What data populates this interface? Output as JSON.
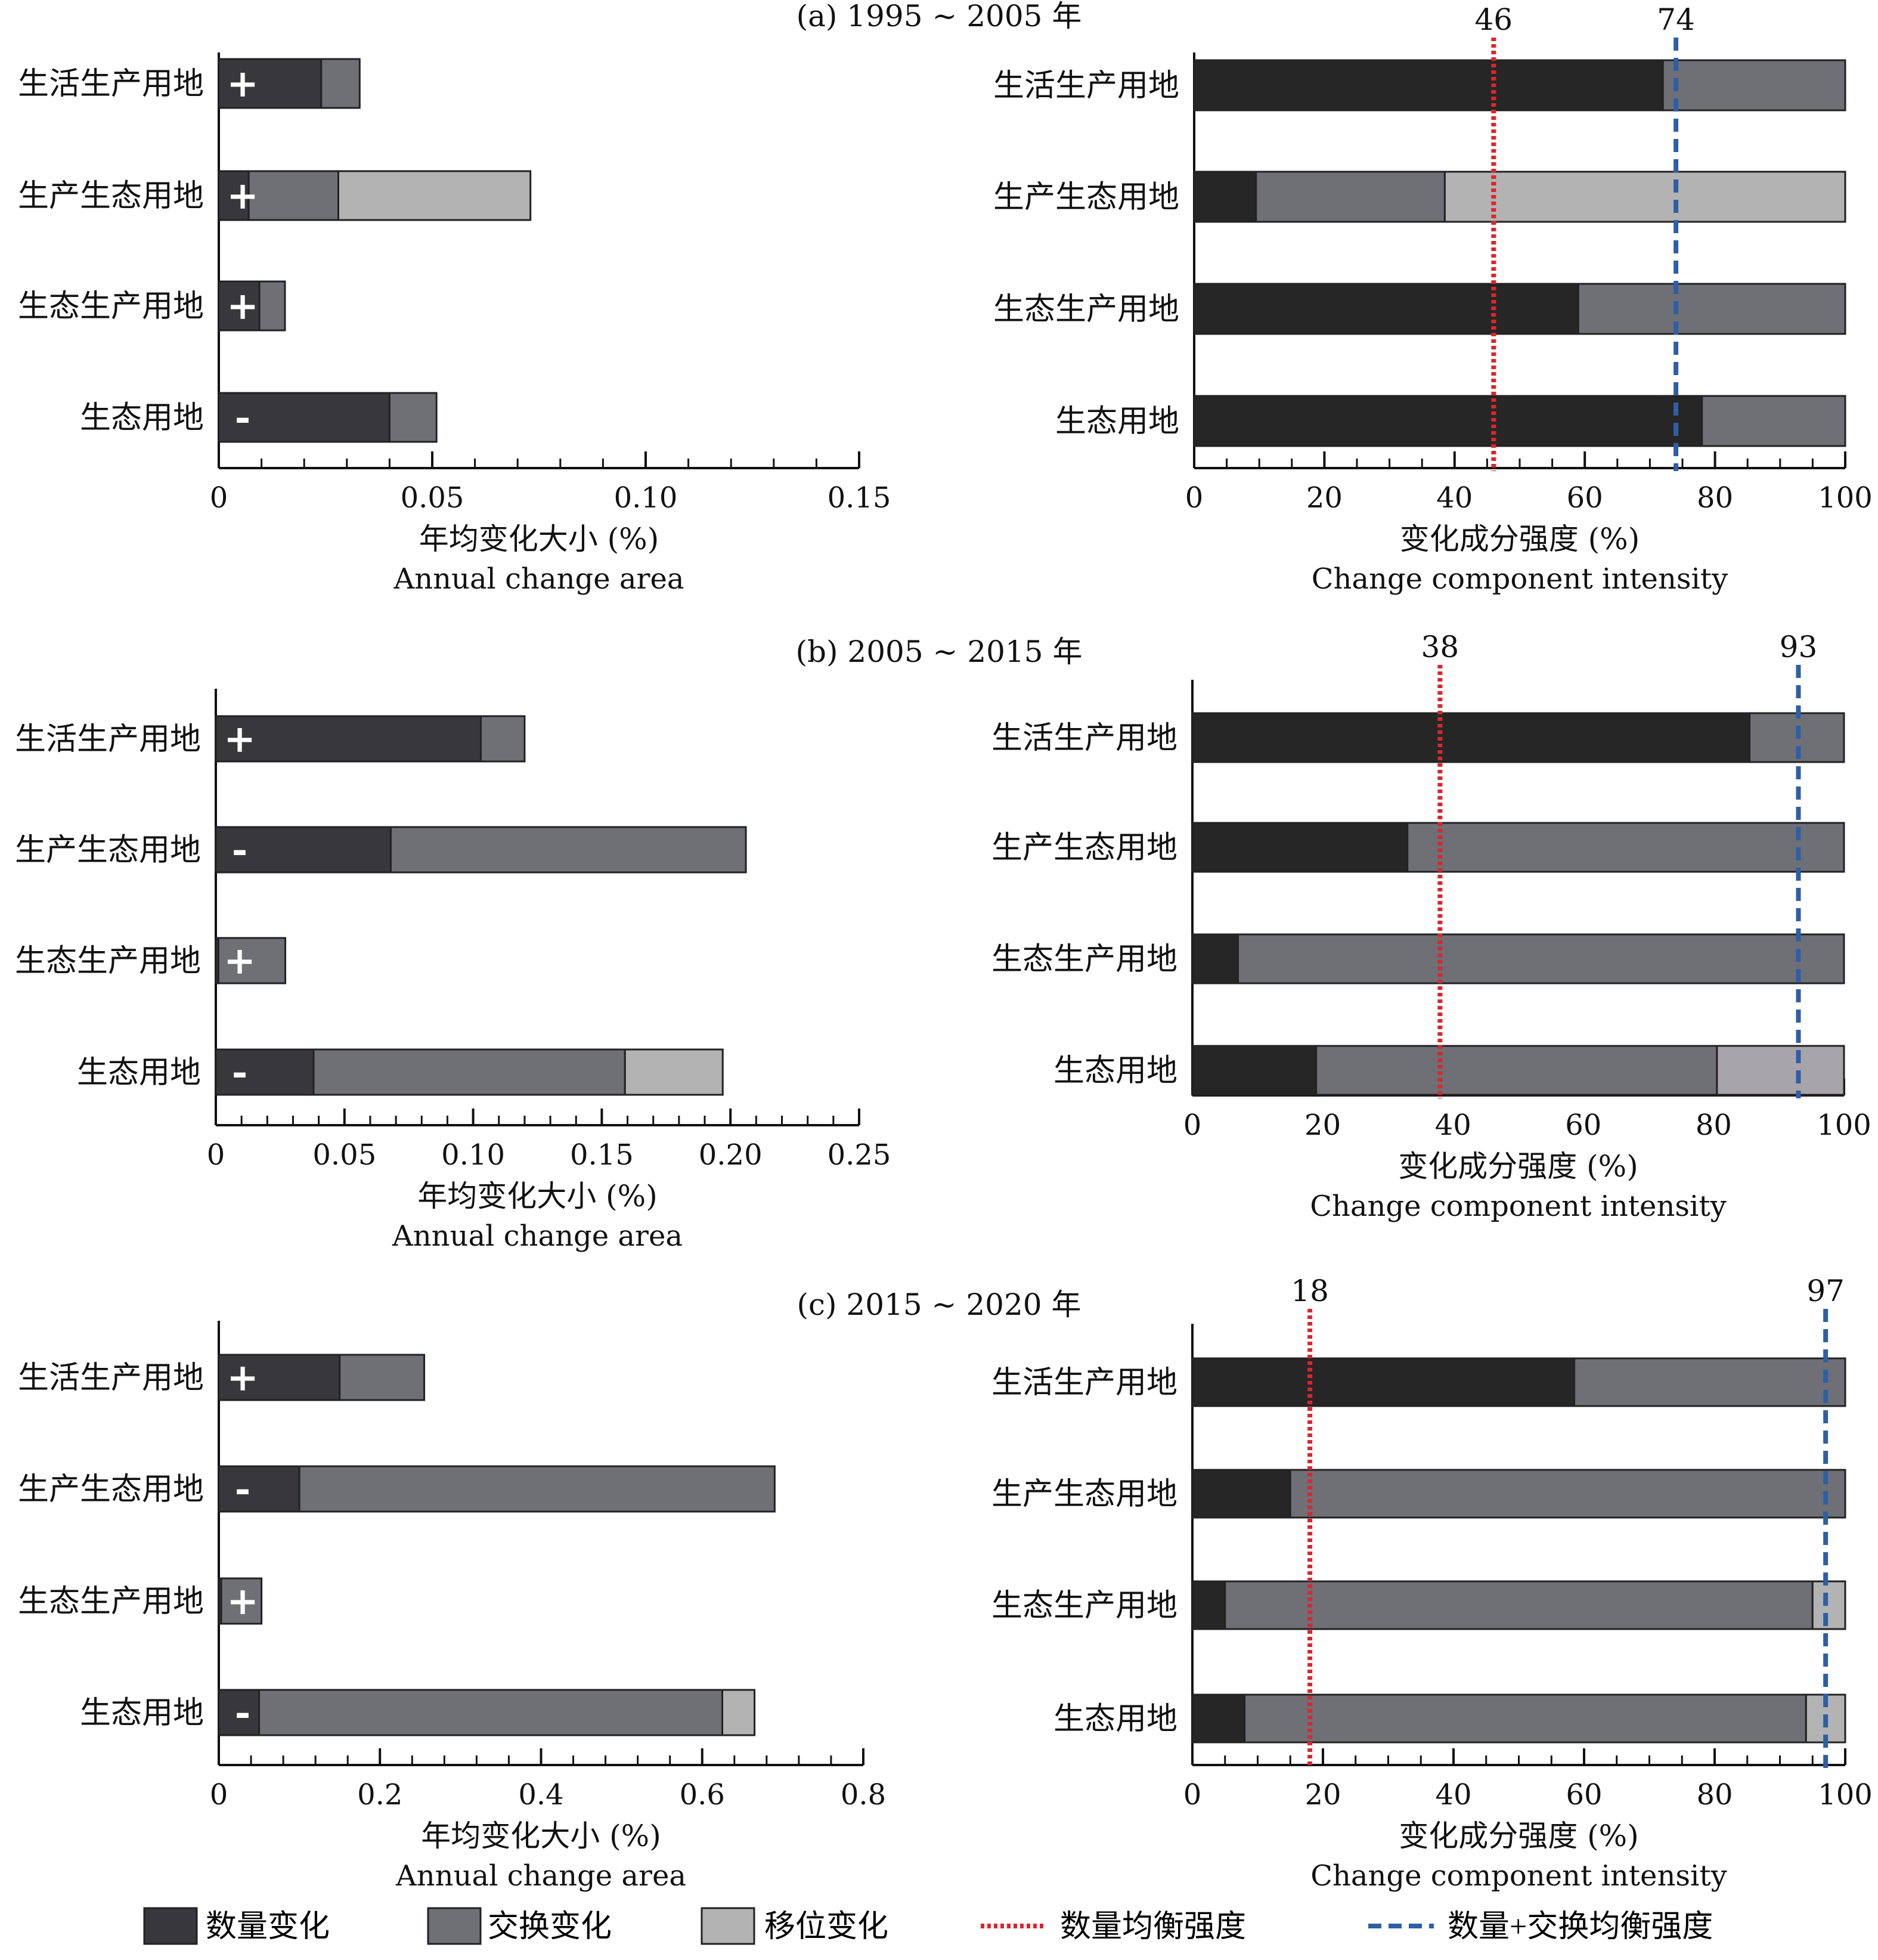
{
  "colors": {
    "quantity": "#38383c",
    "quantity_right": "#262626",
    "exchange": "#6e7075",
    "shift": "#b3b3b3",
    "shift_c_right": "#a8a5aa",
    "quantity_balance_line": "#d9272e",
    "quantity_exchange_balance_line": "#2e5fa5"
  },
  "legend": {
    "items": [
      {
        "label": "数量变化",
        "kind": "box",
        "color_key": "quantity"
      },
      {
        "label": "交换变化",
        "kind": "box",
        "color_key": "exchange"
      },
      {
        "label": "移位变化",
        "kind": "box",
        "color_key": "shift"
      },
      {
        "label": "数量均衡强度",
        "kind": "dotted",
        "color_key": "quantity_balance_line"
      },
      {
        "label": "数量+交换均衡强度",
        "kind": "dashed",
        "color_key": "quantity_exchange_balance_line"
      }
    ]
  },
  "chart_data": [
    {
      "panel": "a",
      "side": "left",
      "type": "bar",
      "stacked": true,
      "orientation": "horizontal",
      "title": "(a) 1995 ~ 2005 年",
      "categories": [
        "生活生产用地",
        "生产生态用地",
        "生态生产用地",
        "生态用地"
      ],
      "signs": [
        "+",
        "+",
        "+",
        "-"
      ],
      "series": [
        {
          "name": "数量变化",
          "values": [
            0.024,
            0.007,
            0.0095,
            0.04
          ]
        },
        {
          "name": "交换变化",
          "values": [
            0.009,
            0.021,
            0.006,
            0.011
          ]
        },
        {
          "name": "移位变化",
          "values": [
            0,
            0.045,
            0,
            0
          ]
        }
      ],
      "xlim": [
        0,
        0.15
      ],
      "ticks": [
        "0",
        "0.05",
        "0.10",
        "0.15"
      ],
      "tick_values": [
        0,
        0.05,
        0.1,
        0.15
      ],
      "minor_step": 0.01,
      "xlabel": "年均变化大小 (%)",
      "xlabel_en": "Annual change area"
    },
    {
      "panel": "a",
      "side": "right",
      "type": "bar",
      "stacked": true,
      "orientation": "horizontal",
      "categories": [
        "生活生产用地",
        "生产生态用地",
        "生态生产用地",
        "生态用地"
      ],
      "series": [
        {
          "name": "数量变化",
          "values": [
            72,
            9.5,
            59,
            78
          ]
        },
        {
          "name": "交换变化",
          "values": [
            28,
            29,
            41,
            22
          ]
        },
        {
          "name": "移位变化",
          "values": [
            0,
            61.5,
            0,
            0
          ]
        }
      ],
      "reference_lines": [
        {
          "name": "数量均衡强度",
          "value": 46,
          "label": "46",
          "style": "dotted"
        },
        {
          "name": "数量+交换均衡强度",
          "value": 74,
          "label": "74",
          "style": "dashed"
        }
      ],
      "xlim": [
        0,
        100
      ],
      "ticks": [
        "0",
        "20",
        "40",
        "60",
        "80",
        "100"
      ],
      "tick_values": [
        0,
        20,
        40,
        60,
        80,
        100
      ],
      "minor_step": 5,
      "xlabel": "变化成分强度 (%)",
      "xlabel_en": "Change component intensity"
    },
    {
      "panel": "b",
      "side": "left",
      "type": "bar",
      "stacked": true,
      "orientation": "horizontal",
      "title": "(b) 2005 ~ 2015 年",
      "categories": [
        "生活生产用地",
        "生产生态用地",
        "生态生产用地",
        "生态用地"
      ],
      "signs": [
        "+",
        "-",
        "+",
        "-"
      ],
      "series": [
        {
          "name": "数量变化",
          "values": [
            0.103,
            0.068,
            0.001,
            0.038
          ]
        },
        {
          "name": "交换变化",
          "values": [
            0.017,
            0.138,
            0.026,
            0.121
          ]
        },
        {
          "name": "移位变化",
          "values": [
            0,
            0,
            0,
            0.038
          ]
        }
      ],
      "xlim": [
        0,
        0.25
      ],
      "ticks": [
        "0",
        "0.05",
        "0.10",
        "0.15",
        "0.20",
        "0.25"
      ],
      "tick_values": [
        0,
        0.05,
        0.1,
        0.15,
        0.2,
        0.25
      ],
      "minor_step": 0.01,
      "xlabel": "年均变化大小 (%)",
      "xlabel_en": "Annual change area"
    },
    {
      "panel": "b",
      "side": "right",
      "type": "bar",
      "stacked": true,
      "orientation": "horizontal",
      "categories": [
        "生活生产用地",
        "生产生态用地",
        "生态生产用地",
        "生态用地"
      ],
      "series": [
        {
          "name": "数量变化",
          "values": [
            85.5,
            33,
            7,
            19
          ]
        },
        {
          "name": "交换变化",
          "values": [
            14.5,
            67,
            93,
            61.5
          ]
        },
        {
          "name": "移位变化",
          "values": [
            0,
            0,
            0,
            19.5
          ]
        }
      ],
      "reference_lines": [
        {
          "name": "数量均衡强度",
          "value": 38,
          "label": "38",
          "style": "dotted"
        },
        {
          "name": "数量+交换均衡强度",
          "value": 93,
          "label": "93",
          "style": "dashed"
        }
      ],
      "xlim": [
        0,
        100
      ],
      "ticks": [
        "0",
        "20",
        "40",
        "60",
        "80",
        "100"
      ],
      "tick_values": [
        0,
        20,
        40,
        60,
        80,
        100
      ],
      "minor_step": 5,
      "xlabel": "变化成分强度 (%)",
      "xlabel_en": "Change component intensity"
    },
    {
      "panel": "c",
      "side": "left",
      "type": "bar",
      "stacked": true,
      "orientation": "horizontal",
      "title": "(c) 2015 ~ 2020 年",
      "categories": [
        "生活生产用地",
        "生产生态用地",
        "生态生产用地",
        "生态用地"
      ],
      "signs": [
        "+",
        "-",
        "+",
        "-"
      ],
      "series": [
        {
          "name": "数量变化",
          "values": [
            0.15,
            0.1,
            0.003,
            0.05
          ]
        },
        {
          "name": "交换变化",
          "values": [
            0.105,
            0.59,
            0.05,
            0.575
          ]
        },
        {
          "name": "移位变化",
          "values": [
            0,
            0,
            0,
            0.04
          ]
        }
      ],
      "xlim": [
        0,
        0.8
      ],
      "ticks": [
        "0",
        "0.2",
        "0.4",
        "0.6",
        "0.8"
      ],
      "tick_values": [
        0,
        0.2,
        0.4,
        0.6,
        0.8
      ],
      "minor_step": 0.04,
      "xlabel": "年均变化大小 (%)",
      "xlabel_en": "Annual change area"
    },
    {
      "panel": "c",
      "side": "right",
      "type": "bar",
      "stacked": true,
      "orientation": "horizontal",
      "categories": [
        "生活生产用地",
        "生产生态用地",
        "生态生产用地",
        "生态用地"
      ],
      "series": [
        {
          "name": "数量变化",
          "values": [
            58.5,
            15,
            5,
            8
          ]
        },
        {
          "name": "交换变化",
          "values": [
            41.5,
            85,
            90,
            86
          ]
        },
        {
          "name": "移位变化",
          "values": [
            0,
            0,
            5,
            6
          ]
        }
      ],
      "reference_lines": [
        {
          "name": "数量均衡强度",
          "value": 18,
          "label": "18",
          "style": "dotted"
        },
        {
          "name": "数量+交换均衡强度",
          "value": 97,
          "label": "97",
          "style": "dashed"
        }
      ],
      "xlim": [
        0,
        100
      ],
      "ticks": [
        "0",
        "20",
        "40",
        "60",
        "80",
        "100"
      ],
      "tick_values": [
        0,
        20,
        40,
        60,
        80,
        100
      ],
      "minor_step": 5,
      "xlabel": "变化成分强度 (%)",
      "xlabel_en": "Change component intensity"
    }
  ]
}
